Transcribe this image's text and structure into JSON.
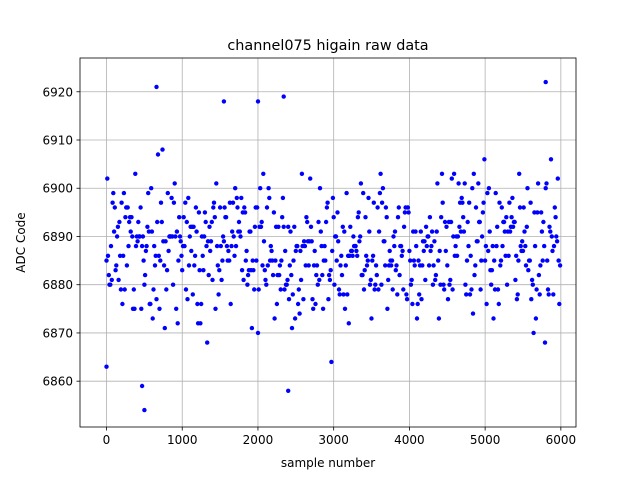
{
  "chart_data": {
    "type": "scatter",
    "title": "channel075 higain raw data",
    "xlabel": "sample number",
    "ylabel": "ADC Code",
    "xlim": [
      -350,
      6200
    ],
    "ylim": [
      6850.5,
      6927
    ],
    "x_ticks": [
      0,
      1000,
      2000,
      3000,
      4000,
      5000,
      6000
    ],
    "y_ticks": [
      6860,
      6870,
      6880,
      6890,
      6900,
      6910,
      6920
    ],
    "grid": true,
    "marker_color": "#0000ff",
    "n_samples": 6000,
    "sample_step": 10,
    "value_min": 6854,
    "value_max": 6922,
    "value_mean": 6888,
    "value_std": 7.5,
    "notable_points": [
      {
        "x": 500,
        "y": 6854
      },
      {
        "x": 470,
        "y": 6859
      },
      {
        "x": 2400,
        "y": 6858
      },
      {
        "x": 660,
        "y": 6921
      },
      {
        "x": 5800,
        "y": 6922
      },
      {
        "x": 2340,
        "y": 6919
      },
      {
        "x": 2000,
        "y": 6918
      },
      {
        "x": 1550,
        "y": 6918
      },
      {
        "x": 0,
        "y": 6863
      }
    ]
  }
}
